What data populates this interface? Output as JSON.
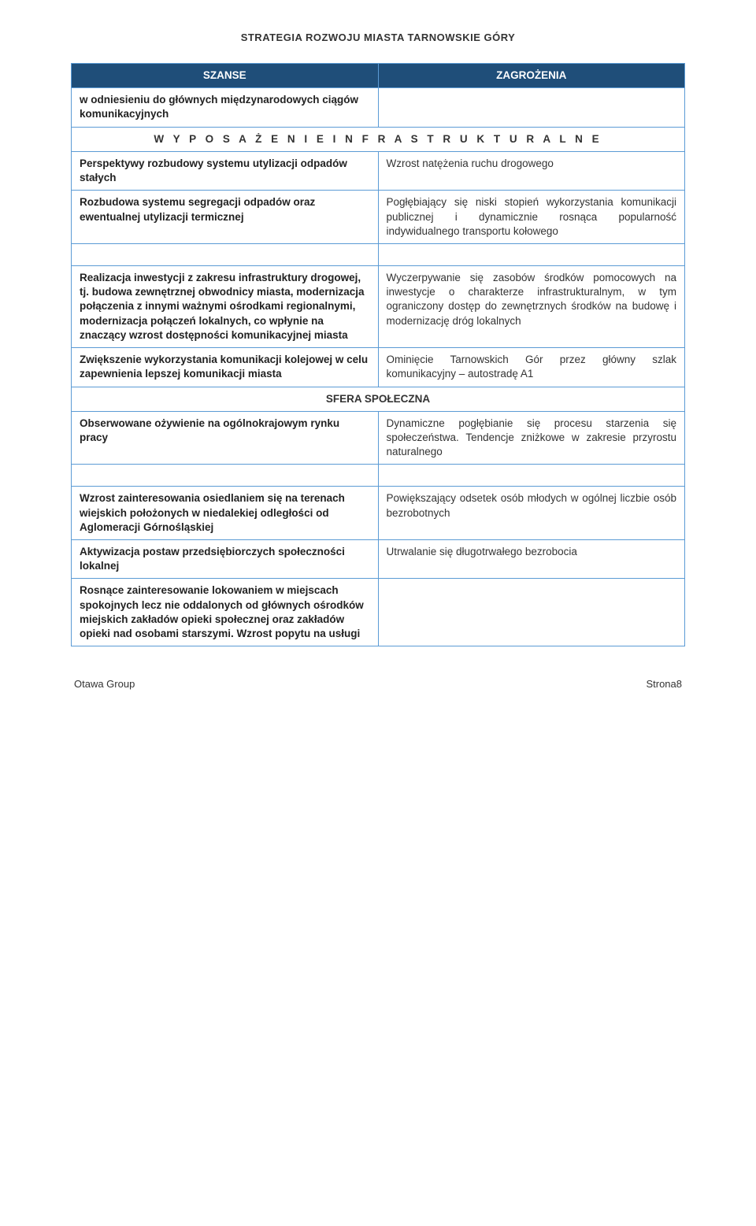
{
  "colors": {
    "header_bg": "#1f4e79",
    "header_text": "#ffffff",
    "border": "#5b9bd5",
    "body_text": "#333333",
    "page_bg": "#ffffff"
  },
  "typography": {
    "font_family": "Verdana, Geneva, sans-serif",
    "body_size_pt": 13.5,
    "header_size_pt": 15,
    "page_header_size_pt": 13,
    "footer_size_pt": 13,
    "line_height": 1.35
  },
  "page_header": "STRATEGIA ROZWOJU MIASTA TARNOWSKIE GÓRY",
  "table": {
    "col_headers": [
      "SZANSE",
      "ZAGROŻENIA"
    ],
    "rows": [
      {
        "type": "pair",
        "left": "w odniesieniu do głównych międzynarodowych ciągów komunikacyjnych",
        "right": ""
      },
      {
        "type": "section",
        "label": "W Y P O S A Ż E N I E  I N F R A S T R U K T U R A L N E"
      },
      {
        "type": "pair",
        "left": "Perspektywy rozbudowy systemu utylizacji odpadów stałych",
        "right": "Wzrost natężenia ruchu drogowego"
      },
      {
        "type": "pair",
        "left": "Rozbudowa systemu segregacji odpadów oraz ewentualnej utylizacji termicznej",
        "right": "Pogłębiający się niski stopień wykorzystania komunikacji publicznej i dynamicznie rosnąca popularność indywidualnego transportu kołowego"
      },
      {
        "type": "spacer"
      },
      {
        "type": "pair",
        "left": "Realizacja inwestycji z zakresu infrastruktury drogowej, tj. budowa zewnętrznej obwodnicy miasta, modernizacja połączenia z  innymi ważnymi ośrodkami regionalnymi, modernizacja połączeń lokalnych, co wpłynie na znaczący wzrost dostępności komunikacyjnej miasta",
        "right": "Wyczerpywanie się zasobów środków pomocowych na inwestycje o charakterze infrastrukturalnym, w tym ograniczony dostęp do zewnętrznych środków na budowę i modernizację dróg lokalnych"
      },
      {
        "type": "pair",
        "left": "Zwiększenie wykorzystania komunikacji kolejowej w celu zapewnienia lepszej komunikacji miasta",
        "right": "Ominięcie Tarnowskich Gór przez główny szlak komunikacyjny – autostradę A1"
      },
      {
        "type": "section",
        "label": "SFERA SPOŁECZNA"
      },
      {
        "type": "pair",
        "left": "Obserwowane ożywienie na ogólnokrajowym rynku pracy",
        "right": "Dynamiczne pogłębianie się procesu starzenia się społeczeństwa. Tendencje zniżkowe w zakresie przyrostu naturalnego"
      },
      {
        "type": "spacer"
      },
      {
        "type": "pair",
        "left": "Wzrost zainteresowania osiedlaniem się na terenach wiejskich położonych w niedalekiej odległości od Aglomeracji Górnośląskiej",
        "right": "Powiększający odsetek osób młodych w ogólnej liczbie osób bezrobotnych"
      },
      {
        "type": "pair",
        "left": "Aktywizacja postaw przedsiębiorczych społeczności lokalnej",
        "right": "Utrwalanie się długotrwałego bezrobocia"
      },
      {
        "type": "pair",
        "left": "Rosnące zainteresowanie lokowaniem w miejscach spokojnych lecz nie oddalonych od głównych ośrodków miejskich zakładów opieki społecznej oraz zakładów opieki nad osobami starszymi. Wzrost popytu na usługi",
        "right": ""
      }
    ]
  },
  "footer": {
    "left": "Otawa Group",
    "right": "Strona8"
  }
}
